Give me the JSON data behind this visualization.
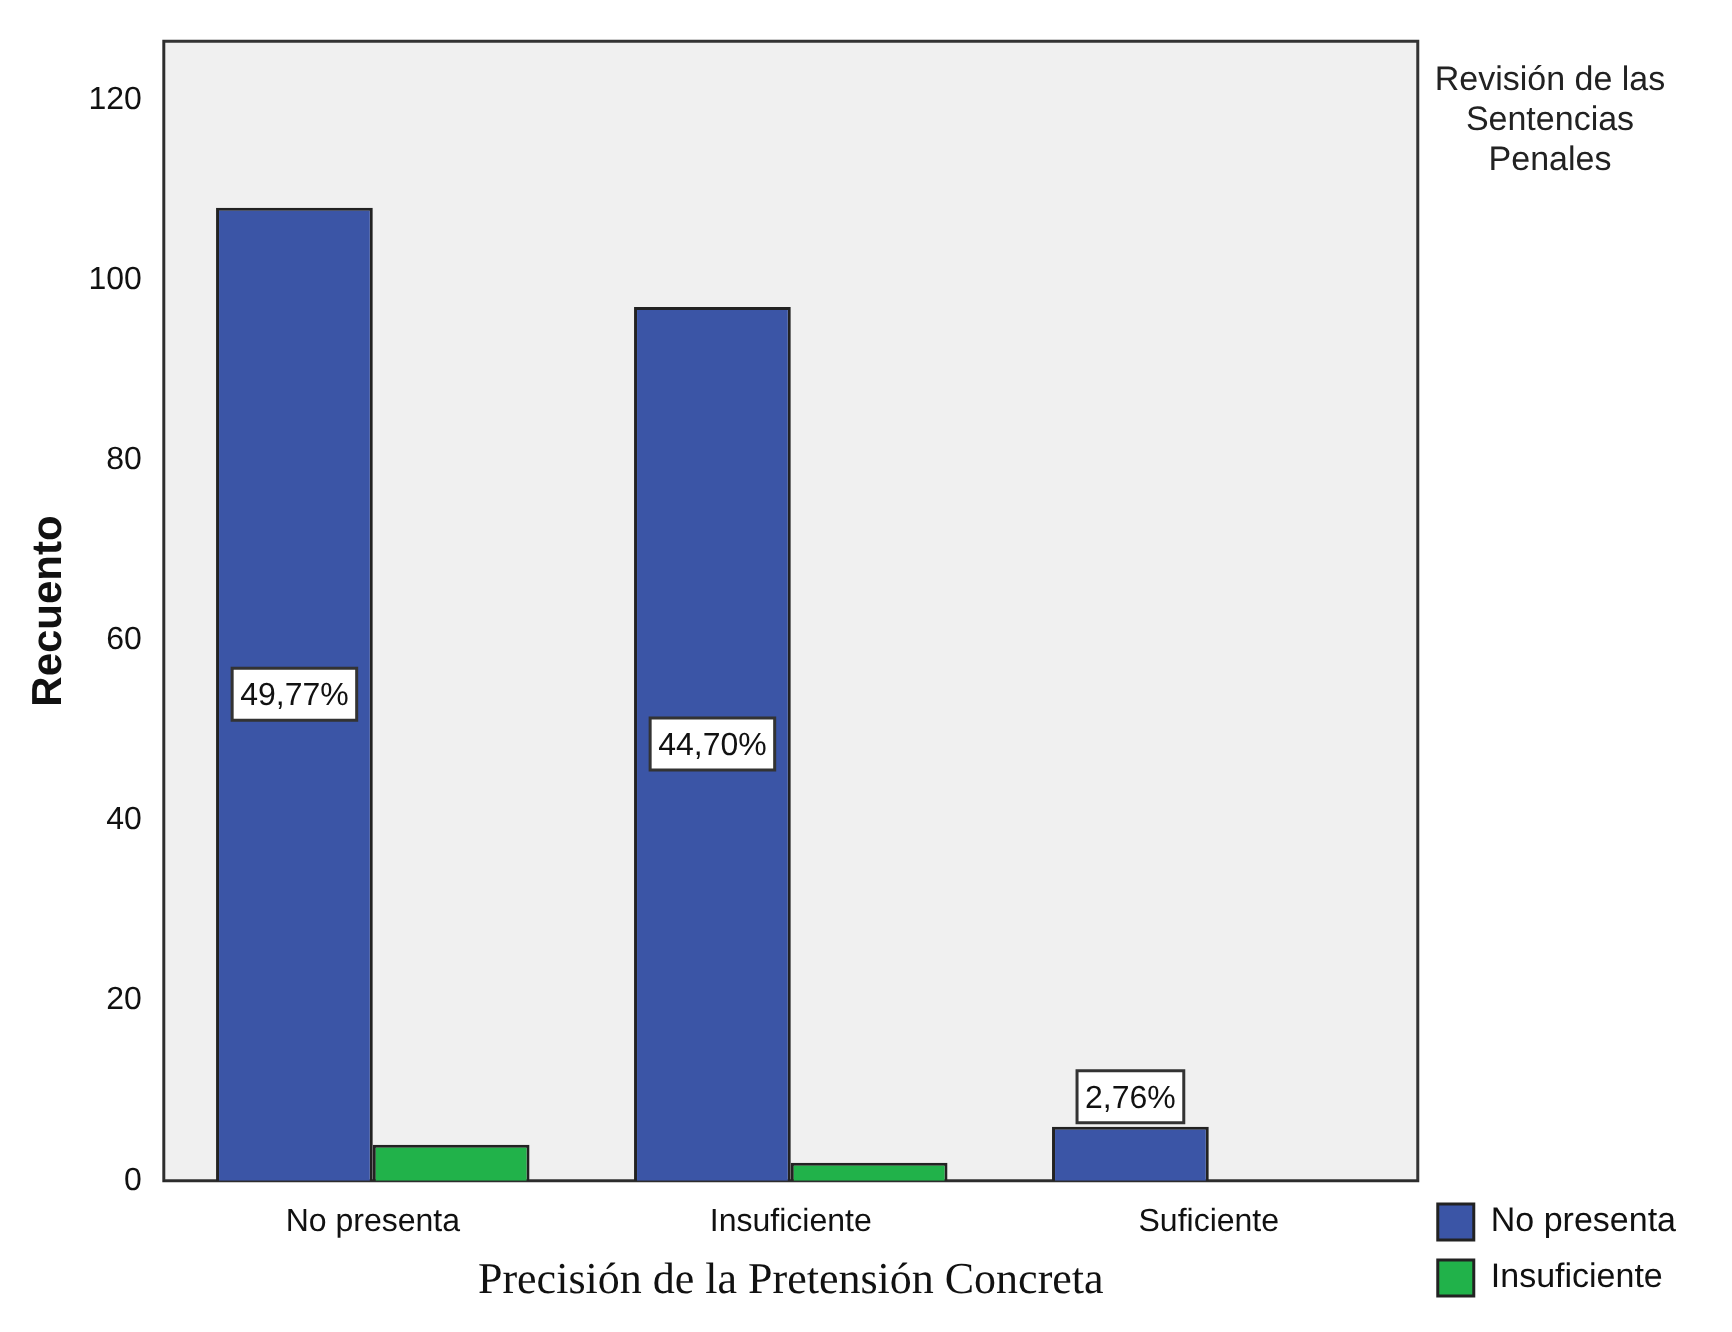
{
  "chart_data": {
    "type": "bar",
    "xlabel": "Precisión de la Pretensión Concreta",
    "ylabel": "Recuento",
    "legend_title": "Revisión de las Sentencias Penales",
    "categories": [
      "No presenta",
      "Insuficiente",
      "Suficiente"
    ],
    "series": [
      {
        "name": "No presenta",
        "color": "#3b55a6",
        "values": [
          108,
          97,
          6
        ]
      },
      {
        "name": "Insuficiente",
        "color": "#21b24a",
        "values": [
          4,
          2,
          null
        ]
      }
    ],
    "annotations": [
      "49,77%",
      "44,70%",
      "2,76%"
    ],
    "ylim": [
      0,
      126.5
    ],
    "yticks": [
      0,
      20,
      40,
      60,
      80,
      100,
      120
    ],
    "grid": false,
    "legend": "right"
  }
}
